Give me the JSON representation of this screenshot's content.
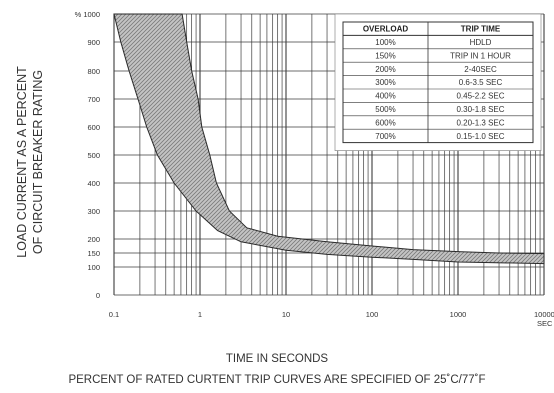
{
  "chart_data": {
    "type": "area",
    "title": "",
    "xlabel": "TIME IN SECONDS",
    "ylabel_lines": [
      "LOAD CURRENT AS A PERCENT",
      "OF CIRCUIT BREAKER RATING"
    ],
    "x_scale": "log",
    "xlim": [
      0.1,
      10000
    ],
    "x_ticks": [
      {
        "value": 0.1,
        "label": "0.1"
      },
      {
        "value": 1,
        "label": "1"
      },
      {
        "value": 10,
        "label": "10"
      },
      {
        "value": 100,
        "label": "100"
      },
      {
        "value": 1000,
        "label": "1000"
      },
      {
        "value": 10000,
        "label": "10000"
      }
    ],
    "x_unit_label": "SEC",
    "y_ticks": [
      "0",
      "100",
      "150",
      "200",
      "300",
      "400",
      "500",
      "600",
      "700",
      "800",
      "900",
      "% 1000"
    ],
    "grid": true,
    "band": {
      "upper": [
        {
          "x": 0.62,
          "y": 1000
        },
        {
          "x": 0.7,
          "y": 900
        },
        {
          "x": 0.8,
          "y": 800
        },
        {
          "x": 0.95,
          "y": 700
        },
        {
          "x": 1.05,
          "y": 600
        },
        {
          "x": 1.3,
          "y": 500
        },
        {
          "x": 1.55,
          "y": 400
        },
        {
          "x": 2.2,
          "y": 300
        },
        {
          "x": 3.5,
          "y": 240
        },
        {
          "x": 8,
          "y": 210
        },
        {
          "x": 30,
          "y": 190
        },
        {
          "x": 100,
          "y": 175
        },
        {
          "x": 300,
          "y": 162
        },
        {
          "x": 1000,
          "y": 155
        },
        {
          "x": 3000,
          "y": 150
        },
        {
          "x": 10000,
          "y": 148
        }
      ],
      "lower": [
        {
          "x": 0.1,
          "y": 1000
        },
        {
          "x": 0.12,
          "y": 900
        },
        {
          "x": 0.15,
          "y": 800
        },
        {
          "x": 0.19,
          "y": 700
        },
        {
          "x": 0.24,
          "y": 600
        },
        {
          "x": 0.32,
          "y": 500
        },
        {
          "x": 0.5,
          "y": 400
        },
        {
          "x": 0.9,
          "y": 300
        },
        {
          "x": 1.6,
          "y": 230
        },
        {
          "x": 3,
          "y": 190
        },
        {
          "x": 10,
          "y": 160
        },
        {
          "x": 30,
          "y": 145
        },
        {
          "x": 100,
          "y": 135
        },
        {
          "x": 300,
          "y": 127
        },
        {
          "x": 1000,
          "y": 118
        },
        {
          "x": 10000,
          "y": 112
        }
      ]
    },
    "table": {
      "headers": [
        "OVERLOAD",
        "TRIP TIME"
      ],
      "rows": [
        [
          "100%",
          "HDLD"
        ],
        [
          "150%",
          "TRIP IN 1 HOUR"
        ],
        [
          "200%",
          "2-40SEC"
        ],
        [
          "300%",
          "0.6-3.5  SEC"
        ],
        [
          "400%",
          "0.45-2.2  SEC"
        ],
        [
          "500%",
          "0.30-1.8  SEC"
        ],
        [
          "600%",
          "0.20-1.3  SEC"
        ],
        [
          "700%",
          "0.15-1.0  SEC"
        ]
      ]
    }
  },
  "footer": {
    "xlabel": "TIME IN SECONDS",
    "note": "PERCENT OF RATED CURTENT TRIP CURVES ARE SPECIFIED OF 25˚C/77˚F"
  },
  "colors": {
    "grid": "#3c3c3c",
    "band_fill": "#b9b9b9",
    "band_edge": "#2a2a2a"
  }
}
